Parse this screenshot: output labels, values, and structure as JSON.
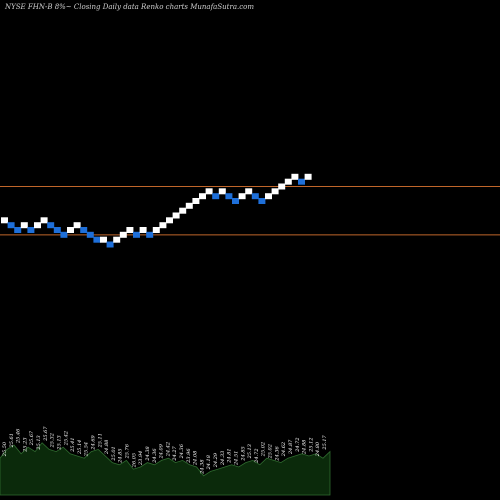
{
  "header": {
    "title": "NYSE FHN-B 8%~  Closing Daily data  Renko  charts MunafaSutra.com"
  },
  "colors": {
    "background": "#000000",
    "up_brick": "#ffffff",
    "down_brick": "#1e6fd9",
    "reference_line": "#c0662a",
    "volume_fill": "#0b2a0b",
    "volume_edge": "#2f6b2f"
  },
  "chart_data": {
    "type": "renko",
    "reference_lines": [
      26.2,
      25.2
    ],
    "bricks": [
      {
        "dir": "up",
        "price": 25.5
      },
      {
        "dir": "down",
        "price": 25.4
      },
      {
        "dir": "down",
        "price": 25.3
      },
      {
        "dir": "up",
        "price": 25.4
      },
      {
        "dir": "down",
        "price": 25.3
      },
      {
        "dir": "up",
        "price": 25.4
      },
      {
        "dir": "up",
        "price": 25.5
      },
      {
        "dir": "down",
        "price": 25.4
      },
      {
        "dir": "down",
        "price": 25.3
      },
      {
        "dir": "down",
        "price": 25.2
      },
      {
        "dir": "up",
        "price": 25.3
      },
      {
        "dir": "up",
        "price": 25.4
      },
      {
        "dir": "down",
        "price": 25.3
      },
      {
        "dir": "down",
        "price": 25.2
      },
      {
        "dir": "down",
        "price": 25.1
      },
      {
        "dir": "up",
        "price": 25.1
      },
      {
        "dir": "down",
        "price": 25.0
      },
      {
        "dir": "up",
        "price": 25.1
      },
      {
        "dir": "up",
        "price": 25.2
      },
      {
        "dir": "up",
        "price": 25.3
      },
      {
        "dir": "down",
        "price": 25.2
      },
      {
        "dir": "up",
        "price": 25.3
      },
      {
        "dir": "down",
        "price": 25.2
      },
      {
        "dir": "up",
        "price": 25.3
      },
      {
        "dir": "up",
        "price": 25.4
      },
      {
        "dir": "up",
        "price": 25.5
      },
      {
        "dir": "up",
        "price": 25.6
      },
      {
        "dir": "up",
        "price": 25.7
      },
      {
        "dir": "up",
        "price": 25.8
      },
      {
        "dir": "up",
        "price": 25.9
      },
      {
        "dir": "up",
        "price": 26.0
      },
      {
        "dir": "up",
        "price": 26.1
      },
      {
        "dir": "down",
        "price": 26.0
      },
      {
        "dir": "up",
        "price": 26.1
      },
      {
        "dir": "down",
        "price": 26.0
      },
      {
        "dir": "down",
        "price": 25.9
      },
      {
        "dir": "up",
        "price": 26.0
      },
      {
        "dir": "up",
        "price": 26.1
      },
      {
        "dir": "down",
        "price": 26.0
      },
      {
        "dir": "down",
        "price": 25.9
      },
      {
        "dir": "up",
        "price": 26.0
      },
      {
        "dir": "up",
        "price": 26.1
      },
      {
        "dir": "up",
        "price": 26.2
      },
      {
        "dir": "up",
        "price": 26.3
      },
      {
        "dir": "up",
        "price": 26.4
      },
      {
        "dir": "down",
        "price": 26.3
      },
      {
        "dir": "up",
        "price": 26.4
      }
    ],
    "volume_area": [
      24.6,
      25.0,
      25.2,
      24.8,
      25.1,
      24.9,
      25.3,
      25.0,
      24.9,
      25.1,
      24.8,
      24.7,
      24.6,
      24.9,
      25.0,
      24.7,
      24.4,
      24.3,
      24.5,
      24.1,
      24.2,
      24.4,
      24.3,
      24.5,
      24.6,
      24.4,
      24.5,
      24.3,
      24.2,
      23.8,
      24.0,
      24.1,
      24.2,
      24.3,
      24.2,
      24.4,
      24.5,
      24.3,
      24.6,
      24.5,
      24.4,
      24.6,
      24.7,
      24.8,
      24.7,
      24.8,
      24.6,
      24.9
    ],
    "price_labels": [
      "25.50",
      "25.61",
      "25.46",
      "25.23",
      "25.67",
      "25.13",
      "25.67",
      "25.32",
      "25.13",
      "25.42",
      "25.41",
      "25.14",
      "25.54",
      "24.69",
      "25.11",
      "24.88",
      "25.01",
      "24.85",
      "25.76",
      "26.05",
      "23.94",
      "24.38",
      "24.36",
      "24.09",
      "24.42",
      "24.27",
      "24.36",
      "23.96",
      "24.08",
      "24.38",
      "24.18",
      "24.29",
      "24.33",
      "24.81",
      "24.51",
      "24.85",
      "25.13",
      "24.72",
      "25.02",
      "25.02",
      "24.36",
      "24.62",
      "24.87",
      "24.72",
      "24.88",
      "25.12",
      "24.80",
      "25.17"
    ]
  }
}
